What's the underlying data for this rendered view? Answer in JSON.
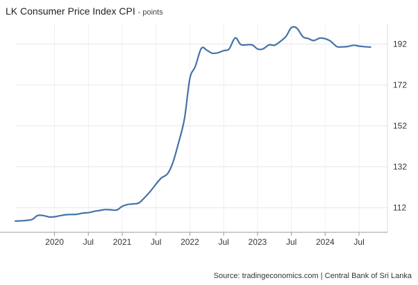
{
  "chart_data": {
    "type": "line",
    "title": "LK Consumer Price Index CPI",
    "unit_label": "points",
    "source": "Source: tradingeconomics.com | Central Bank of Sri Lanka",
    "xlabel": "",
    "ylabel": "",
    "ylim": [
      100,
      202
    ],
    "xlim": [
      2019.42,
      2024.92
    ],
    "y_ticks": [
      112,
      132,
      152,
      172,
      192
    ],
    "x_ticks": [
      {
        "value": 2020.0,
        "label": "2020"
      },
      {
        "value": 2020.5,
        "label": "Jul"
      },
      {
        "value": 2021.0,
        "label": "2021"
      },
      {
        "value": 2021.5,
        "label": "Jul"
      },
      {
        "value": 2022.0,
        "label": "2022"
      },
      {
        "value": 2022.5,
        "label": "Jul"
      },
      {
        "value": 2023.0,
        "label": "2023"
      },
      {
        "value": 2023.5,
        "label": "Jul"
      },
      {
        "value": 2024.0,
        "label": "2024"
      },
      {
        "value": 2024.5,
        "label": "Jul"
      }
    ],
    "grid": true,
    "line_color": "#4472a8",
    "series": [
      {
        "name": "CPI",
        "x": [
          2019.42,
          2019.5,
          2019.58,
          2019.67,
          2019.75,
          2019.83,
          2019.92,
          2020.0,
          2020.08,
          2020.17,
          2020.25,
          2020.33,
          2020.42,
          2020.5,
          2020.58,
          2020.67,
          2020.75,
          2020.83,
          2020.92,
          2021.0,
          2021.08,
          2021.17,
          2021.25,
          2021.33,
          2021.42,
          2021.5,
          2021.58,
          2021.67,
          2021.75,
          2021.83,
          2021.92,
          2022.0,
          2022.08,
          2022.17,
          2022.25,
          2022.33,
          2022.42,
          2022.5,
          2022.58,
          2022.67,
          2022.75,
          2022.83,
          2022.92,
          2023.0,
          2023.08,
          2023.17,
          2023.25,
          2023.33,
          2023.42,
          2023.5,
          2023.58,
          2023.67,
          2023.75,
          2023.83,
          2023.92,
          2024.0,
          2024.08,
          2024.17,
          2024.25,
          2024.33,
          2024.42,
          2024.5,
          2024.58,
          2024.67
        ],
        "values": [
          105.5,
          105.6,
          105.8,
          106.3,
          108.2,
          108.2,
          107.5,
          107.6,
          108.1,
          108.6,
          108.7,
          108.8,
          109.4,
          109.6,
          110.2,
          110.7,
          111.1,
          111.0,
          110.9,
          112.7,
          113.6,
          113.9,
          114.4,
          116.9,
          120.2,
          123.6,
          126.6,
          128.6,
          134.2,
          143.4,
          155.4,
          175.1,
          181.0,
          189.9,
          189.0,
          187.5,
          187.8,
          188.8,
          189.6,
          195.0,
          191.8,
          191.6,
          191.6,
          189.6,
          189.6,
          191.6,
          191.4,
          193.1,
          195.7,
          200.0,
          199.8,
          195.6,
          194.7,
          193.7,
          194.9,
          194.6,
          193.4,
          190.8,
          190.6,
          190.8,
          191.4,
          191.0,
          190.7,
          190.5
        ]
      }
    ]
  }
}
